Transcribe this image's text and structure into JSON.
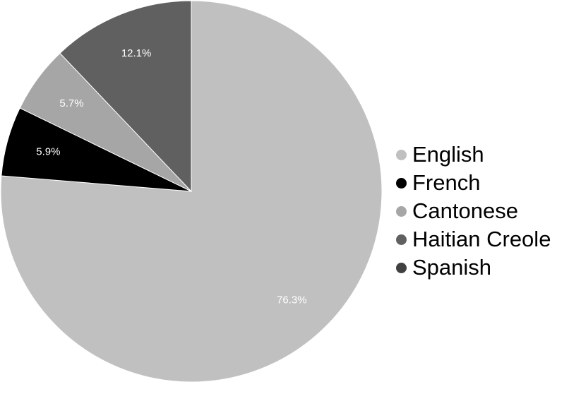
{
  "chart_data": {
    "type": "pie",
    "title": "",
    "start_angle_deg": 0,
    "direction": "clockwise",
    "legend_position": "right",
    "slices": [
      {
        "name": "English",
        "value": 76.3,
        "label": "76.3%",
        "color": "#c0c0c0"
      },
      {
        "name": "French",
        "value": 5.9,
        "label": "5.9%",
        "color": "#000000"
      },
      {
        "name": "Cantonese",
        "value": 5.7,
        "label": "5.7%",
        "color": "#a6a6a6"
      },
      {
        "name": "Haitian Creole",
        "value": 12.1,
        "label": "12.1%",
        "color": "#606060"
      },
      {
        "name": "Spanish",
        "value": 0,
        "label": "",
        "color": "#404040"
      }
    ]
  }
}
